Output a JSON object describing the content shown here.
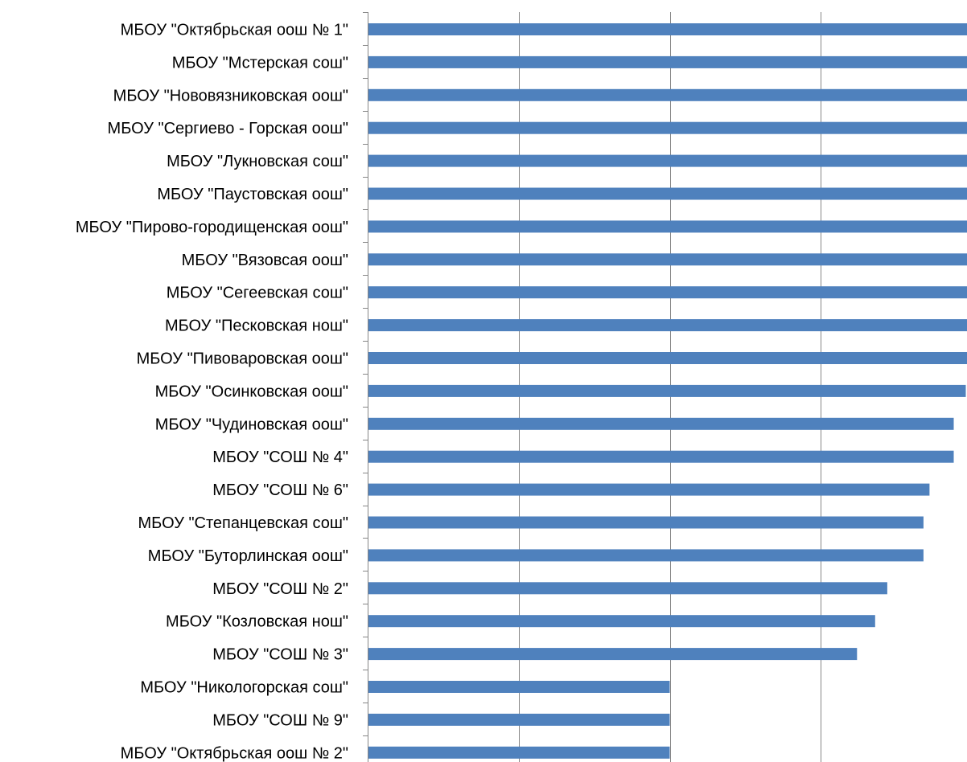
{
  "chart_data": {
    "type": "bar",
    "orientation": "horizontal",
    "title": "",
    "xlabel": "",
    "ylabel": "",
    "xlim": [
      0,
      100
    ],
    "gridlines": "vertical",
    "grid_values": [
      25,
      50,
      75
    ],
    "x_tick_labels_visible": false,
    "legend": "none",
    "bar_color": "#4f81bd",
    "categories": [
      "МБОУ \"Октябрьская оош № 1\"",
      "МБОУ \"Мстерская сош\"",
      "МБОУ \"Нововязниковская оош\"",
      "МБОУ \"Сергиево - Горская оош\"",
      "МБОУ \"Лукновская сош\"",
      "МБОУ \"Паустовская оош\"",
      "МБОУ \"Пирово-городищенская оош\"",
      "МБОУ \"Вязовсая оош\"",
      "МБОУ \"Сегеевская сош\"",
      "МБОУ \"Песковская нош\"",
      "МБОУ \"Пивоваровская оош\"",
      "МБОУ \"Осинковская оош\"",
      "МБОУ \"Чудиновская оош\"",
      "МБОУ \"СОШ № 4\"",
      "МБОУ \"СОШ № 6\"",
      "МБОУ \"Степанцевская сош\"",
      "МБОУ \"Буторлинская оош\"",
      "МБОУ \"СОШ № 2\"",
      "МБОУ \"Козловская нош\"",
      "МБОУ \"СОШ № 3\"",
      "МБОУ \"Никологорская сош\"",
      "МБОУ \"СОШ № 9\"",
      "МБОУ \"Октябрьская оош № 2\""
    ],
    "values": [
      100,
      100,
      100,
      100,
      100,
      100,
      100,
      100,
      100,
      100,
      100,
      99,
      97,
      97,
      93,
      92,
      92,
      86,
      84,
      81,
      50,
      50,
      50
    ]
  }
}
